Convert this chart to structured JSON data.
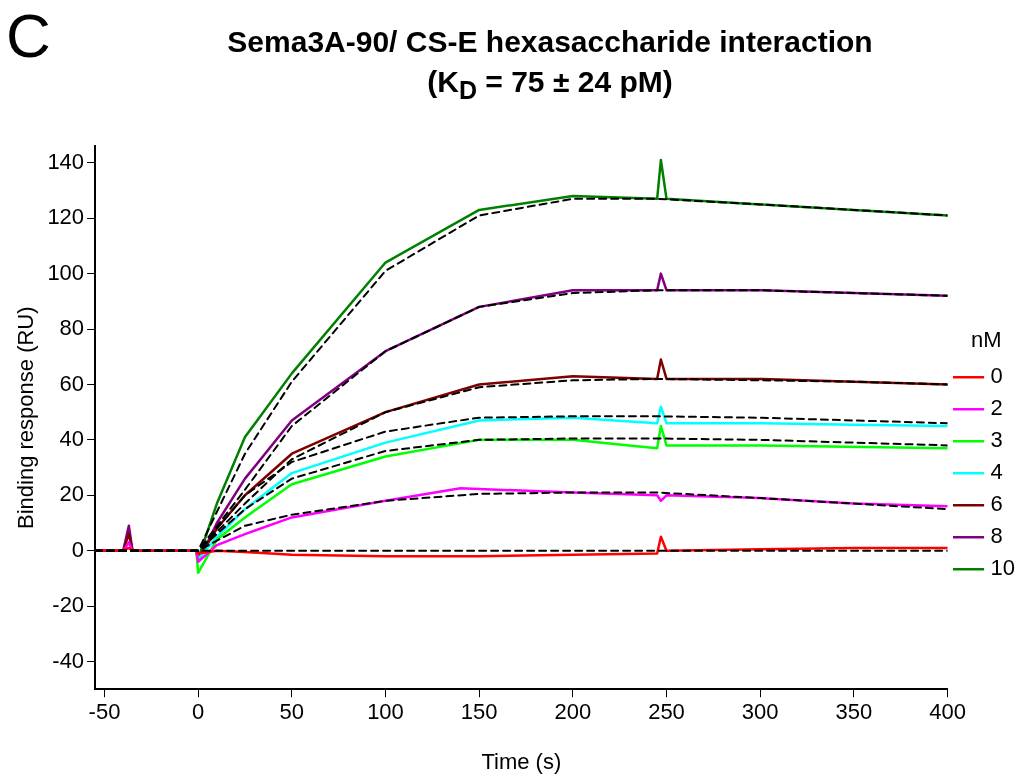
{
  "chart_data": {
    "type": "line",
    "title": "Sema3A-90/ CS-E hexasaccharide interaction",
    "subtitle": "(K$_{D}$ = 75 ± 24 pM)",
    "annotations": [
      "C"
    ],
    "xlabel": "Time (s)",
    "ylabel": "Binding response (RU)",
    "legend_title": "nM",
    "legend": "right",
    "grid": false,
    "marker": "none",
    "xlim": [
      -55,
      400
    ],
    "xticks": [
      -50,
      0,
      50,
      100,
      150,
      200,
      250,
      300,
      350,
      400
    ],
    "ylim": [
      -50,
      146
    ],
    "yticks": [
      -40,
      -20,
      0,
      20,
      40,
      60,
      80,
      100,
      120,
      140
    ],
    "series": [
      {
        "name": "0",
        "color": "#ff0000",
        "x": [
          -55,
          -40,
          -37,
          -35,
          -1,
          0,
          10,
          25,
          50,
          100,
          150,
          200,
          245,
          247,
          250,
          300,
          350,
          400
        ],
        "values": [
          0,
          0,
          1,
          0,
          0,
          -1,
          0,
          -0.5,
          -1.5,
          -2,
          -2,
          -1.5,
          -1,
          5,
          0,
          0.5,
          1,
          1
        ]
      },
      {
        "name": "2",
        "color": "#ff00ff",
        "x": [
          -55,
          -40,
          -37,
          -35,
          -1,
          0,
          10,
          25,
          50,
          100,
          140,
          200,
          245,
          247,
          250,
          300,
          350,
          400
        ],
        "values": [
          0,
          0,
          3,
          0,
          0,
          -4,
          2,
          6,
          12,
          18,
          22.5,
          21,
          20,
          18,
          20,
          19,
          17,
          16
        ]
      },
      {
        "name": "3",
        "color": "#00ff00",
        "x": [
          -35,
          -1,
          0,
          10,
          25,
          50,
          100,
          150,
          200,
          230,
          245,
          247,
          250,
          300,
          400
        ],
        "values": [
          0,
          0,
          -8,
          4,
          12,
          24,
          34,
          40,
          40,
          38,
          37,
          45,
          38,
          38,
          37
        ]
      },
      {
        "name": "4",
        "color": "#00ffff",
        "x": [
          -35,
          -1,
          0,
          10,
          25,
          50,
          100,
          150,
          200,
          245,
          247,
          250,
          300,
          350,
          400
        ],
        "values": [
          0,
          0,
          -3,
          5,
          15,
          28,
          39,
          47,
          48,
          46,
          52,
          46,
          46,
          45.5,
          45
        ]
      },
      {
        "name": "6",
        "color": "#800000",
        "x": [
          -55,
          -40,
          -37,
          -35,
          -1,
          0,
          10,
          25,
          50,
          100,
          150,
          200,
          245,
          247,
          250,
          300,
          350,
          400
        ],
        "values": [
          0,
          0,
          6,
          0,
          0,
          -3,
          8,
          20,
          35,
          50,
          60,
          63,
          62,
          69,
          62,
          62,
          61,
          60
        ]
      },
      {
        "name": "8",
        "color": "#800080",
        "x": [
          -55,
          -40,
          -37,
          -35,
          -1,
          0,
          10,
          25,
          50,
          100,
          150,
          200,
          245,
          247,
          250,
          300,
          350,
          400
        ],
        "values": [
          0,
          0,
          9,
          0,
          0,
          -4,
          10,
          26,
          47,
          72,
          88,
          94,
          94,
          100,
          94,
          94,
          93,
          92
        ]
      },
      {
        "name": "10",
        "color": "#008000",
        "x": [
          -35,
          -1,
          0,
          10,
          25,
          50,
          100,
          150,
          200,
          245,
          247,
          250,
          300,
          350,
          400
        ],
        "values": [
          0,
          0,
          -3,
          17,
          41,
          64,
          104,
          123,
          128,
          127,
          141,
          127,
          125,
          123,
          121
        ]
      },
      {
        "type": "line",
        "line_style": "dashed",
        "color": "#000000",
        "x": [
          -55,
          0,
          50,
          100,
          150,
          200,
          245,
          300,
          350,
          400
        ],
        "values": [
          0,
          0,
          0,
          0,
          0,
          0,
          0,
          0,
          0,
          0
        ]
      },
      {
        "type": "line",
        "line_style": "dashed",
        "color": "#000000",
        "x": [
          -55,
          0,
          25,
          50,
          100,
          150,
          200,
          245,
          300,
          350,
          400
        ],
        "values": [
          0,
          0,
          9,
          13,
          18,
          20.5,
          21,
          21,
          19,
          17,
          15
        ]
      },
      {
        "type": "line",
        "line_style": "dashed",
        "color": "#000000",
        "x": [
          -55,
          0,
          25,
          50,
          100,
          150,
          200,
          245,
          300,
          350,
          400
        ],
        "values": [
          0,
          0,
          15,
          26,
          36,
          40,
          40.5,
          40.5,
          40,
          39,
          38
        ]
      },
      {
        "type": "line",
        "line_style": "dashed",
        "color": "#000000",
        "x": [
          -55,
          0,
          25,
          50,
          100,
          150,
          200,
          245,
          300,
          350,
          400
        ],
        "values": [
          0,
          0,
          20,
          32,
          43,
          48,
          48.5,
          48.5,
          48,
          47,
          46
        ]
      },
      {
        "type": "line",
        "line_style": "dashed",
        "color": "#000000",
        "x": [
          -55,
          0,
          25,
          50,
          100,
          150,
          200,
          245,
          300,
          350,
          400
        ],
        "values": [
          0,
          0,
          17,
          33,
          50,
          59,
          61.5,
          62,
          61.5,
          61,
          60
        ]
      },
      {
        "type": "line",
        "line_style": "dashed",
        "color": "#000000",
        "x": [
          -55,
          0,
          25,
          50,
          100,
          150,
          200,
          245,
          300,
          350,
          400
        ],
        "values": [
          0,
          0,
          22,
          45,
          72,
          88,
          93,
          94,
          94,
          93,
          92
        ]
      },
      {
        "type": "line",
        "line_style": "dashed",
        "color": "#000000",
        "x": [
          -55,
          0,
          25,
          50,
          100,
          150,
          200,
          245,
          300,
          350,
          400
        ],
        "values": [
          0,
          0,
          35,
          61,
          101,
          121,
          127,
          127,
          125,
          123,
          121
        ]
      }
    ]
  }
}
